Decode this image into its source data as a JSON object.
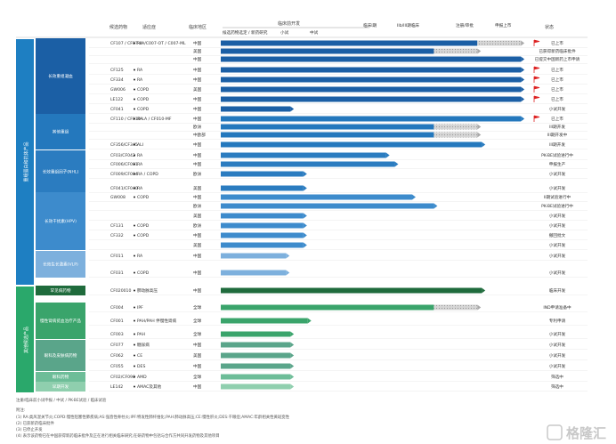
{
  "header": {
    "col_candidate": "候选药物",
    "col_indication": "适应症",
    "col_region": "临床地区",
    "col_phase_group": "临床前开发",
    "phase_sub": [
      "候选药物选定 / 新药研究",
      "小试",
      "中试"
    ],
    "phase_columns": [
      "临床I期",
      "IIb/III期临床",
      "注册/审批",
      "申报上市"
    ],
    "col_status": "状态"
  },
  "sections": [
    {
      "label": "重组蛋白和抗体产品",
      "color": "#1e7fc2"
    },
    {
      "label": "其他候选产品",
      "color": "#2aa86b"
    }
  ],
  "categories": [
    {
      "label": "长效重组凝血",
      "color": "#1b5fa5"
    },
    {
      "label": "其他重组",
      "color": "#2478bd"
    },
    {
      "label": "长效重组因子(NHL)",
      "color": "#2b7cc0"
    },
    {
      "label": "长效干扰素(HPV)",
      "color": "#3d8bcc"
    },
    {
      "label": "长效生长激素(VLP)",
      "color": "#7db0dd"
    },
    {
      "label": "罕见病药物",
      "color": "#1f6b3c"
    },
    {
      "label": "慢性肾病贫血治疗产品",
      "color": "#3aa46b"
    },
    {
      "label": "眼科及皮肤病药物",
      "color": "#5aa58a"
    },
    {
      "label": "眼科药物",
      "color": "#6dbd98"
    },
    {
      "label": "早期开发",
      "color": "#8fcfae"
    }
  ],
  "rows": [
    {
      "drug": "CF107 / CF07-LA/C007-OT / C007-ML",
      "ind": "RA",
      "region": "中国",
      "stage": 6.9,
      "status": "已上市"
    },
    {
      "drug": "",
      "ind": "",
      "region": "美国",
      "stage": 5.9,
      "status": "已获得新药临床批件"
    },
    {
      "drug": "",
      "ind": "",
      "region": "中国",
      "stage": 6.9,
      "status": "已提交中国新药上市申请"
    },
    {
      "drug": "CF125",
      "ind": "RA",
      "region": "中国",
      "stage": 6.9,
      "status": "已上市"
    },
    {
      "drug": "CF334",
      "ind": "RA",
      "region": "中国",
      "stage": 6.9,
      "status": "已上市"
    },
    {
      "drug": "GW006",
      "ind": "COPD",
      "region": "美国",
      "stage": 6.9,
      "status": "已上市"
    },
    {
      "drug": "LE122",
      "ind": "COPD",
      "region": "中国",
      "stage": 6.9,
      "status": "已上市"
    },
    {
      "drug": "CF041",
      "ind": "COPD",
      "region": "中国",
      "stage": 1.6,
      "status": "小试开发"
    },
    {
      "drug": "CF110 / CF010-LA / CF010-MF",
      "ind": "RA",
      "region": "中国",
      "stage": 6.9,
      "status": "已上市"
    },
    {
      "drug": "",
      "ind": "",
      "region": "欧洲",
      "stage": 5.9,
      "status": "III期开发"
    },
    {
      "drug": "",
      "ind": "",
      "region": "中欧部",
      "stage": 5.9,
      "status": "III期开发中"
    },
    {
      "drug": "CF356/CF345",
      "ind": "ALI",
      "region": "中国",
      "stage": 6.0,
      "status": "III期开发"
    },
    {
      "drug": "CF03/CF042",
      "ind": "RA",
      "region": "中国",
      "stage": 3.8,
      "status": "PK-BE试验进行中"
    },
    {
      "drug": "CF006/CF001",
      "ind": "RA",
      "region": "中国",
      "stage": 4.0,
      "status": "申报生产"
    },
    {
      "drug": "CF009/CF004",
      "ind": "RA / COPD",
      "region": "欧洲",
      "stage": 1.9,
      "status": "小试开发"
    },
    {
      "drug": "CF041/CF040",
      "ind": "RA",
      "region": "美国",
      "stage": 1.9,
      "status": "小试开发"
    },
    {
      "drug": "GW008",
      "ind": "COPD",
      "region": "中国",
      "stage": 4.4,
      "status": "II期试验进行中"
    },
    {
      "drug": "",
      "ind": "",
      "region": "欧洲",
      "stage": 4.9,
      "status": "PK-BE试验进行中"
    },
    {
      "drug": "",
      "ind": "",
      "region": "美国",
      "stage": 1.9,
      "status": "小试开发"
    },
    {
      "drug": "CF131",
      "ind": "COPD",
      "region": "欧洲",
      "stage": 1.9,
      "status": "小试开发"
    },
    {
      "drug": "CF332",
      "ind": "COPD",
      "region": "中国",
      "stage": 1.9,
      "status": "撤回批文"
    },
    {
      "drug": "",
      "ind": "",
      "region": "美国",
      "stage": 1.9,
      "status": "小试开发"
    },
    {
      "drug": "CF011",
      "ind": "RA",
      "region": "中国",
      "stage": 1.5,
      "status": "小试开发"
    },
    {
      "drug": "CF031",
      "ind": "COPD",
      "region": "中国",
      "stage": 1.5,
      "status": "小试开发"
    },
    {
      "drug": "CF020010",
      "ind": "肺动脉高压",
      "region": "中国",
      "stage": 6.0,
      "status": "临床开发"
    },
    {
      "drug": "CF004",
      "ind": "IPF",
      "region": "全球",
      "stage": 5.9,
      "status": "IND申请准备中"
    },
    {
      "drug": "CF001",
      "ind": "PAH/PAH 伴慢性肾病",
      "region": "全球",
      "stage": 2.0,
      "status": "专利申请"
    },
    {
      "drug": "CF003",
      "ind": "PAH",
      "region": "全球",
      "stage": 1.6,
      "status": "小试开发"
    },
    {
      "drug": "CF077",
      "ind": "糖尿病",
      "region": "中国",
      "stage": 1.6,
      "status": "小试开发"
    },
    {
      "drug": "CF062",
      "ind": "CE",
      "region": "美国",
      "stage": 1.6,
      "status": "小试开发"
    },
    {
      "drug": "CF055",
      "ind": "DES",
      "region": "中国",
      "stage": 1.6,
      "status": "小试开发"
    },
    {
      "drug": "CF02/CF090",
      "ind": "AMD",
      "region": "全球",
      "stage": 1.6,
      "status": "筛选中"
    },
    {
      "drug": "LE142",
      "ind": "AMAC及其他",
      "region": "中国",
      "stage": 1.6,
      "status": "筛选中"
    }
  ],
  "footnotes": {
    "legend": "注册/临床前小试申报 / 中试 / PK-BE试验 / 临床试验",
    "note_title": "附注:",
    "note1": "(1) RA:类风湿关节炎;COPD:慢性阻塞性肺疾病;AS:强直性脊柱炎;IPF:特发性肺纤维化;PAH:肺动脉高压;CE:慢性肝炎;DES:干眼症;AMAC:年龄相关性黄斑变性",
    "note2": "(2) 已获新药临床批件",
    "note3": "(3) 已停止开发",
    "note4": "(4) 表示该药物已在中国获得新药临床批件及正在进行相关临床研究;在研药物中包括与合作方共同开发药物及其他项目"
  },
  "watermark": "格隆汇"
}
